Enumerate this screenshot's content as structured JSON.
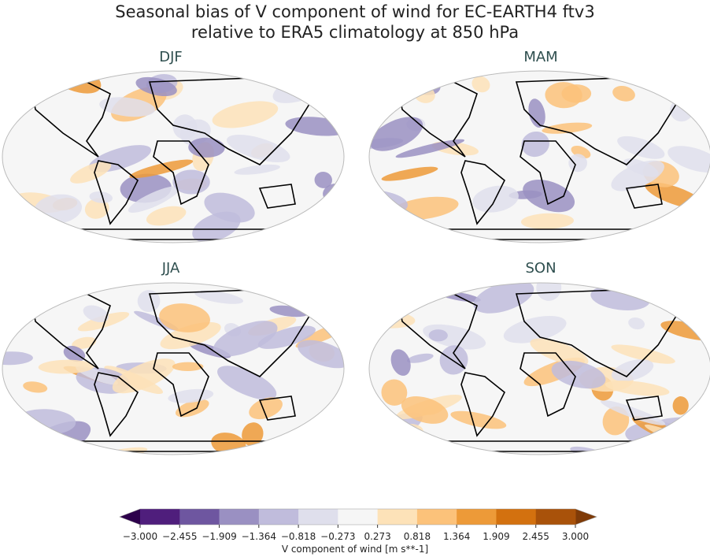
{
  "title_line1": "Seasonal bias of V component of wind for EC-EARTH4 ftv3",
  "title_line2": "relative to ERA5 climatology at 850 hPa",
  "panels": [
    {
      "label": "DJF"
    },
    {
      "label": "MAM"
    },
    {
      "label": "JJA"
    },
    {
      "label": "SON"
    }
  ],
  "colorbar": {
    "label": "V component of wind [m s**-1]",
    "ticks": [
      "−3.000",
      "−2.455",
      "−1.909",
      "−1.364",
      "−0.818",
      "−0.273",
      "0.273",
      "0.818",
      "1.364",
      "1.909",
      "2.455",
      "3.000"
    ],
    "colors": [
      "#4f1e7c",
      "#6e56a0",
      "#9a90c2",
      "#c0bcdc",
      "#dfdfec",
      "#f6f6f6",
      "#fde2b8",
      "#fcc27a",
      "#ed9a38",
      "#d3710f",
      "#a9520a"
    ],
    "under_color": "#2d004b",
    "over_color": "#7f3b08",
    "extend": "both",
    "colormap": "PuOr_r"
  }
}
